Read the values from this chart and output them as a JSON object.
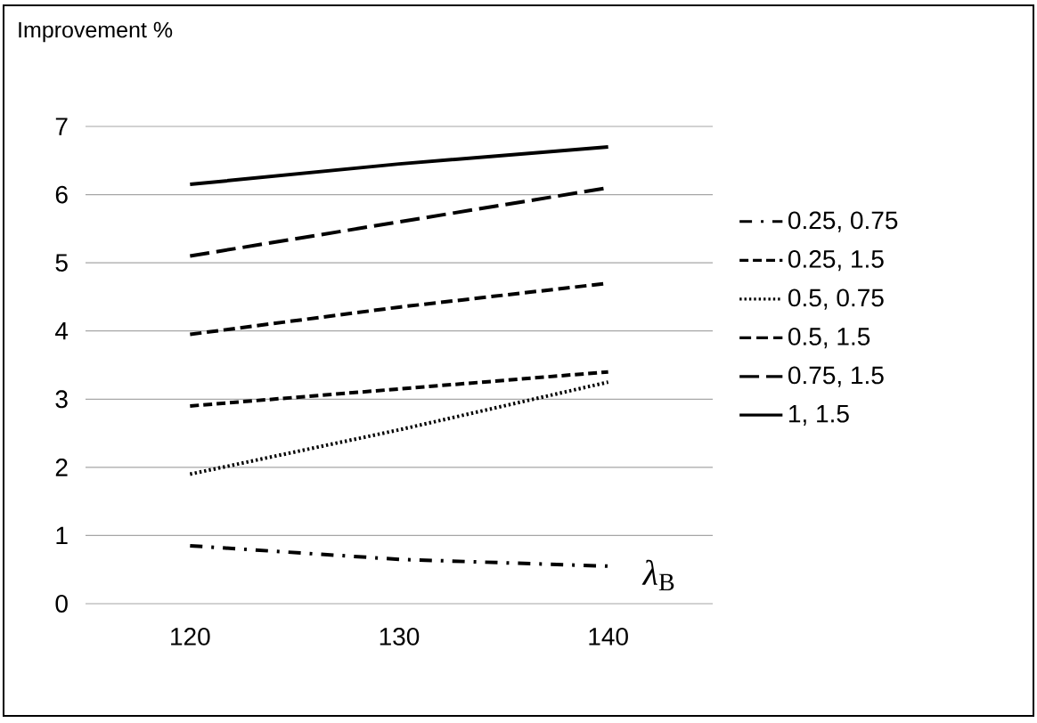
{
  "chart_data": {
    "type": "line",
    "xlabel": "*λ*$_{B}$",
    "ylabel": "Improvement %",
    "categories": [
      "120",
      "130",
      "140"
    ],
    "series": [
      {
        "name": "0.25, 0.75",
        "color": "#000000",
        "line_style": "dashdot",
        "values": [
          0.85,
          0.65,
          0.55
        ]
      },
      {
        "name": "0.25, 1.5",
        "color": "#000000",
        "line_style": "dashed",
        "values": [
          2.9,
          3.15,
          3.4
        ]
      },
      {
        "name": "0.5, 0.75",
        "color": "#000000",
        "line_style": "dotted",
        "values": [
          1.9,
          2.55,
          3.25
        ]
      },
      {
        "name": "0.5, 1.5",
        "color": "#000000",
        "line_style": "loosely dashed",
        "values": [
          3.95,
          4.35,
          4.7
        ]
      },
      {
        "name": "0.75, 1.5",
        "color": "#000000",
        "line_style": "long dashed",
        "values": [
          5.1,
          5.6,
          6.1
        ]
      },
      {
        "name": "1, 1.5",
        "color": "#000000",
        "line_style": "solid",
        "values": [
          6.15,
          6.45,
          6.7
        ]
      }
    ],
    "ylim": [
      0,
      7
    ],
    "yticks": [
      0,
      1,
      2,
      3,
      4,
      5,
      6,
      7
    ],
    "grid": "y",
    "legend": "right",
    "marker": "none"
  }
}
